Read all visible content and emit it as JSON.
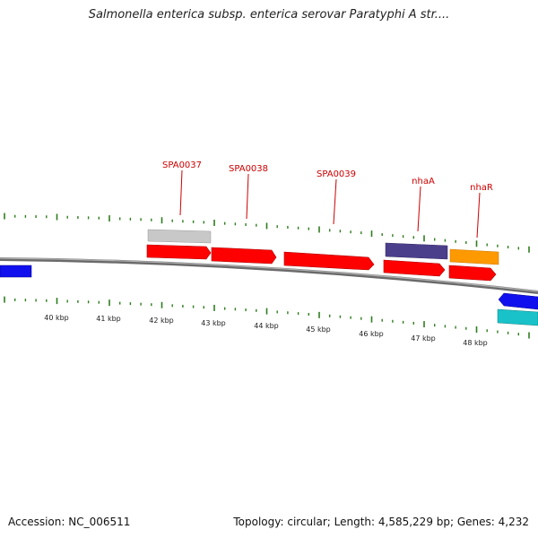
{
  "title": "Salmonella enterica subsp. enterica serovar Paratyphi A str....",
  "footer": {
    "accession": "Accession: NC_006511",
    "summary": "Topology: circular; Length: 4,585,229 bp; Genes: 4,232"
  },
  "colors": {
    "backbone": "#8a8a8a",
    "tick": "#2e7d1e",
    "gene_label": "#cc0000",
    "forward_cds": "#ff0000",
    "grey_feature": "#c8c8c8",
    "purple_feature": "#4b3f8c",
    "orange_feature": "#ff9900",
    "blue_feature": "#1010ee",
    "cyan_feature": "#19c2c8"
  },
  "genes": [
    {
      "name": "SPA0037"
    },
    {
      "name": "SPA0038"
    },
    {
      "name": "SPA0039"
    },
    {
      "name": "nhaA"
    },
    {
      "name": "nhaR"
    }
  ],
  "scale_labels": [
    "40 kbp",
    "41 kbp",
    "42 kbp",
    "43 kbp",
    "44 kbp",
    "45 kbp",
    "46 kbp",
    "47 kbp",
    "48 kbp"
  ]
}
